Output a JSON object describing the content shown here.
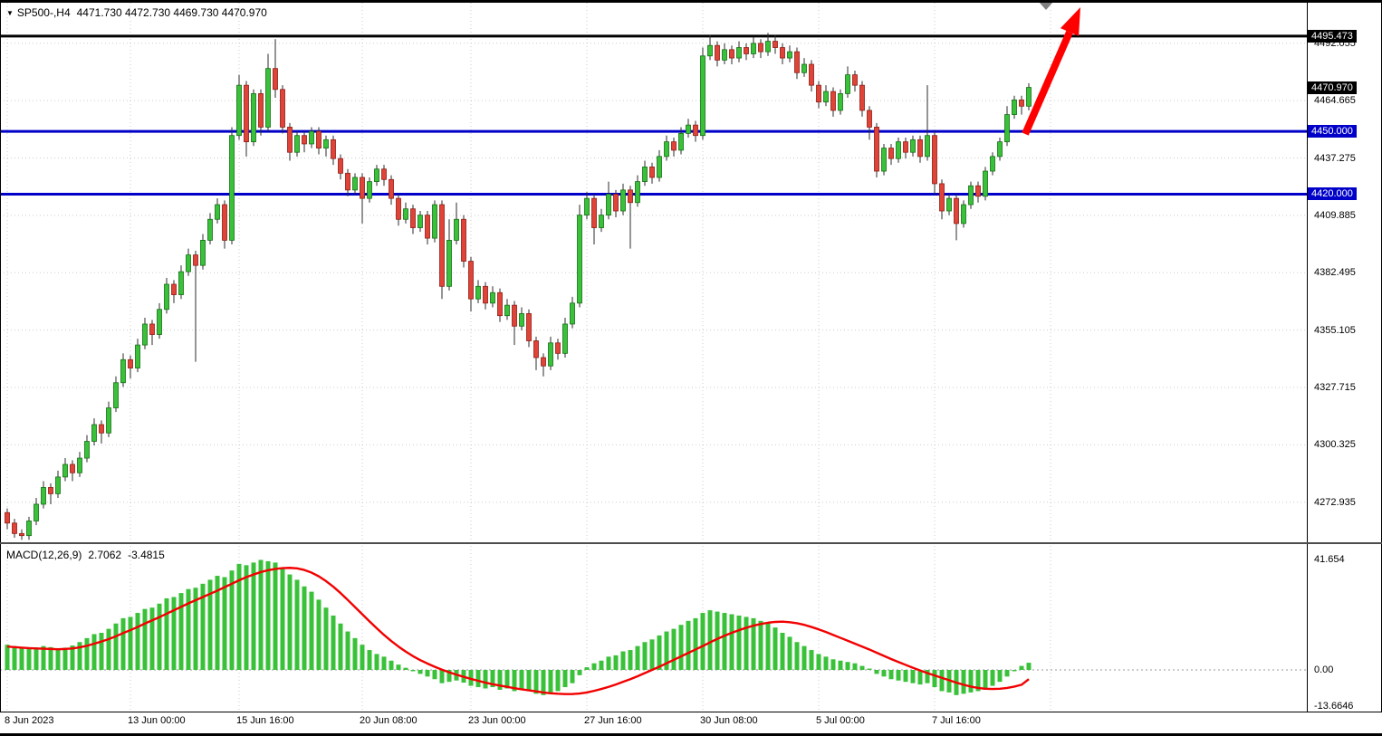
{
  "header": {
    "symbol_period": "SP500-,H4",
    "quote": "4471.730 4472.730 4469.730 4470.970"
  },
  "icons": {
    "title_triangle": "▼"
  },
  "indicator": {
    "name": "MACD(12,26,9)",
    "main_value": "2.7062",
    "signal_value": "-3.4815"
  },
  "price_axis": {
    "labels": [
      {
        "text": "4495.473",
        "price": 4495.473,
        "style": "box-black"
      },
      {
        "text": "4492.055",
        "price": 4492.055,
        "style": "plain"
      },
      {
        "text": "4470.970",
        "price": 4470.97,
        "style": "box-black"
      },
      {
        "text": "4464.665",
        "price": 4464.665,
        "style": "plain"
      },
      {
        "text": "4450.000",
        "price": 4450.0,
        "style": "box-blue"
      },
      {
        "text": "4437.275",
        "price": 4437.275,
        "style": "plain"
      },
      {
        "text": "4420.000",
        "price": 4420.0,
        "style": "box-blue"
      },
      {
        "text": "4409.885",
        "price": 4409.885,
        "style": "plain"
      },
      {
        "text": "4382.495",
        "price": 4382.495,
        "style": "plain"
      },
      {
        "text": "4355.105",
        "price": 4355.105,
        "style": "plain"
      },
      {
        "text": "4327.715",
        "price": 4327.715,
        "style": "plain"
      },
      {
        "text": "4300.325",
        "price": 4300.325,
        "style": "plain"
      },
      {
        "text": "4272.935",
        "price": 4272.935,
        "style": "plain"
      }
    ]
  },
  "chart_data": [
    {
      "type": "candlestick",
      "symbol": "SP500-",
      "timeframe": "H4",
      "last": {
        "open": 4471.73,
        "high": 4472.73,
        "low": 4469.73,
        "close": 4470.97
      },
      "ylim": [
        4253.4,
        4511.4
      ],
      "up_color": "#3ac13a",
      "down_color": "#e04338",
      "levels": [
        {
          "price": 4495.473,
          "color": "#000000",
          "width": 3
        },
        {
          "price": 4450.0,
          "color": "#0000C8",
          "width": 3
        },
        {
          "price": 4420.0,
          "color": "#0000C8",
          "width": 3
        }
      ],
      "grid_prices": [
        4492.055,
        4464.665,
        4437.275,
        4409.885,
        4382.495,
        4355.105,
        4327.715,
        4300.325,
        4272.935
      ],
      "time_ticks": [
        {
          "bar": 0,
          "label": "8 Jun 2023"
        },
        {
          "bar": 17,
          "label": "13 Jun 00:00"
        },
        {
          "bar": 32,
          "label": "15 Jun 16:00"
        },
        {
          "bar": 49,
          "label": "20 Jun 08:00"
        },
        {
          "bar": 64,
          "label": "23 Jun 00:00"
        },
        {
          "bar": 80,
          "label": "27 Jun 16:00"
        },
        {
          "bar": 96,
          "label": "30 Jun 08:00"
        },
        {
          "bar": 112,
          "label": "5 Jul 00:00"
        },
        {
          "bar": 128,
          "label": "7 Jul 16:00"
        },
        {
          "bar": 144,
          "label": ""
        }
      ],
      "annotations": {
        "arrow": {
          "tail": [
            1132,
            148
          ],
          "tip": [
            1193,
            8
          ],
          "color": "#FF0000"
        },
        "top_marker": {
          "x": 1155,
          "y": 2,
          "color": "#808080"
        }
      },
      "candles": [
        [
          4268,
          4270,
          4260,
          4263
        ],
        [
          4263,
          4265,
          4256,
          4258
        ],
        [
          4258,
          4260,
          4255,
          4257
        ],
        [
          4257,
          4266,
          4255,
          4264
        ],
        [
          4264,
          4275,
          4262,
          4272
        ],
        [
          4272,
          4283,
          4270,
          4280
        ],
        [
          4280,
          4282,
          4272,
          4277
        ],
        [
          4277,
          4288,
          4275,
          4285
        ],
        [
          4285,
          4294,
          4283,
          4291
        ],
        [
          4291,
          4293,
          4283,
          4287
        ],
        [
          4287,
          4297,
          4285,
          4294
        ],
        [
          4294,
          4305,
          4292,
          4302
        ],
        [
          4302,
          4313,
          4300,
          4310
        ],
        [
          4310,
          4312,
          4301,
          4306
        ],
        [
          4306,
          4321,
          4304,
          4318
        ],
        [
          4318,
          4333,
          4316,
          4330
        ],
        [
          4330,
          4344,
          4328,
          4341
        ],
        [
          4341,
          4343,
          4332,
          4337
        ],
        [
          4337,
          4351,
          4335,
          4348
        ],
        [
          4348,
          4361,
          4346,
          4358
        ],
        [
          4358,
          4360,
          4348,
          4353
        ],
        [
          4353,
          4368,
          4351,
          4365
        ],
        [
          4365,
          4380,
          4363,
          4377
        ],
        [
          4377,
          4379,
          4368,
          4372
        ],
        [
          4372,
          4386,
          4370,
          4383
        ],
        [
          4383,
          4394,
          4381,
          4391
        ],
        [
          4391,
          4393,
          4340,
          4386
        ],
        [
          4386,
          4401,
          4384,
          4398
        ],
        [
          4398,
          4411,
          4396,
          4408
        ],
        [
          4408,
          4418,
          4406,
          4415
        ],
        [
          4415,
          4417,
          4394,
          4398
        ],
        [
          4398,
          4452,
          4396,
          4448
        ],
        [
          4448,
          4477,
          4446,
          4472
        ],
        [
          4472,
          4474,
          4438,
          4445
        ],
        [
          4445,
          4470,
          4443,
          4468
        ],
        [
          4468,
          4470,
          4448,
          4452
        ],
        [
          4452,
          4487,
          4450,
          4480
        ],
        [
          4480,
          4494,
          4466,
          4470
        ],
        [
          4470,
          4472,
          4449,
          4452
        ],
        [
          4452,
          4454,
          4436,
          4440
        ],
        [
          4440,
          4450,
          4438,
          4448
        ],
        [
          4448,
          4450,
          4440,
          4444
        ],
        [
          4444,
          4452,
          4442,
          4450
        ],
        [
          4450,
          4452,
          4439,
          4442
        ],
        [
          4442,
          4448,
          4438,
          4446
        ],
        [
          4446,
          4448,
          4434,
          4437
        ],
        [
          4437,
          4439,
          4427,
          4430
        ],
        [
          4430,
          4432,
          4419,
          4422
        ],
        [
          4422,
          4430,
          4420,
          4428
        ],
        [
          4428,
          4430,
          4406,
          4418
        ],
        [
          4418,
          4428,
          4416,
          4426
        ],
        [
          4426,
          4434,
          4424,
          4432
        ],
        [
          4432,
          4434,
          4424,
          4427
        ],
        [
          4427,
          4429,
          4415,
          4418
        ],
        [
          4418,
          4420,
          4405,
          4408
        ],
        [
          4408,
          4416,
          4406,
          4413
        ],
        [
          4413,
          4415,
          4401,
          4404
        ],
        [
          4404,
          4412,
          4402,
          4410
        ],
        [
          4410,
          4412,
          4396,
          4399
        ],
        [
          4399,
          4417,
          4397,
          4415
        ],
        [
          4415,
          4417,
          4370,
          4376
        ],
        [
          4376,
          4408,
          4374,
          4398
        ],
        [
          4398,
          4416,
          4396,
          4408
        ],
        [
          4408,
          4410,
          4385,
          4388
        ],
        [
          4388,
          4390,
          4364,
          4370
        ],
        [
          4370,
          4379,
          4368,
          4376
        ],
        [
          4376,
          4378,
          4365,
          4368
        ],
        [
          4368,
          4376,
          4366,
          4373
        ],
        [
          4373,
          4375,
          4359,
          4362
        ],
        [
          4362,
          4370,
          4360,
          4367
        ],
        [
          4367,
          4369,
          4348,
          4357
        ],
        [
          4357,
          4366,
          4355,
          4363
        ],
        [
          4363,
          4365,
          4347,
          4350
        ],
        [
          4350,
          4352,
          4336,
          4342
        ],
        [
          4342,
          4344,
          4333,
          4338
        ],
        [
          4338,
          4352,
          4336,
          4349
        ],
        [
          4349,
          4351,
          4341,
          4344
        ],
        [
          4344,
          4361,
          4342,
          4358
        ],
        [
          4358,
          4371,
          4356,
          4368
        ],
        [
          4368,
          4415,
          4366,
          4410
        ],
        [
          4410,
          4421,
          4408,
          4418
        ],
        [
          4418,
          4420,
          4396,
          4404
        ],
        [
          4404,
          4413,
          4402,
          4410
        ],
        [
          4410,
          4426,
          4408,
          4420
        ],
        [
          4420,
          4422,
          4409,
          4412
        ],
        [
          4412,
          4425,
          4410,
          4422
        ],
        [
          4422,
          4424,
          4394,
          4416
        ],
        [
          4416,
          4429,
          4414,
          4426
        ],
        [
          4426,
          4436,
          4424,
          4433
        ],
        [
          4433,
          4435,
          4425,
          4428
        ],
        [
          4428,
          4441,
          4426,
          4438
        ],
        [
          4438,
          4448,
          4436,
          4445
        ],
        [
          4445,
          4447,
          4438,
          4441
        ],
        [
          4441,
          4452,
          4439,
          4449
        ],
        [
          4449,
          4456,
          4447,
          4453
        ],
        [
          4453,
          4455,
          4445,
          4448
        ],
        [
          4448,
          4490,
          4446,
          4486
        ],
        [
          4486,
          4496,
          4484,
          4491
        ],
        [
          4491,
          4493,
          4481,
          4484
        ],
        [
          4484,
          4492,
          4482,
          4489
        ],
        [
          4489,
          4491,
          4482,
          4485
        ],
        [
          4485,
          4493,
          4483,
          4490
        ],
        [
          4490,
          4492,
          4484,
          4487
        ],
        [
          4487,
          4495,
          4485,
          4492
        ],
        [
          4492,
          4494,
          4485,
          4488
        ],
        [
          4488,
          4497,
          4486,
          4493
        ],
        [
          4493,
          4496,
          4487,
          4490
        ],
        [
          4490,
          4492,
          4482,
          4485
        ],
        [
          4485,
          4491,
          4483,
          4488
        ],
        [
          4488,
          4490,
          4475,
          4478
        ],
        [
          4478,
          4485,
          4476,
          4482
        ],
        [
          4482,
          4484,
          4469,
          4472
        ],
        [
          4472,
          4474,
          4461,
          4464
        ],
        [
          4464,
          4472,
          4462,
          4469
        ],
        [
          4469,
          4471,
          4457,
          4460
        ],
        [
          4460,
          4470,
          4458,
          4468
        ],
        [
          4468,
          4481,
          4466,
          4477
        ],
        [
          4477,
          4479,
          4469,
          4472
        ],
        [
          4472,
          4474,
          4457,
          4460
        ],
        [
          4460,
          4462,
          4446,
          4452
        ],
        [
          4452,
          4454,
          4428,
          4431
        ],
        [
          4431,
          4444,
          4429,
          4442
        ],
        [
          4442,
          4444,
          4434,
          4437
        ],
        [
          4437,
          4447,
          4435,
          4445
        ],
        [
          4445,
          4447,
          4437,
          4440
        ],
        [
          4440,
          4448,
          4438,
          4446
        ],
        [
          4446,
          4448,
          4435,
          4438
        ],
        [
          4438,
          4472,
          4436,
          4448
        ],
        [
          4448,
          4450,
          4420,
          4425
        ],
        [
          4425,
          4427,
          4408,
          4412
        ],
        [
          4412,
          4420,
          4410,
          4418
        ],
        [
          4418,
          4420,
          4398,
          4406
        ],
        [
          4406,
          4417,
          4404,
          4415
        ],
        [
          4415,
          4426,
          4413,
          4424
        ],
        [
          4424,
          4426,
          4416,
          4419
        ],
        [
          4419,
          4433,
          4417,
          4431
        ],
        [
          4431,
          4440,
          4429,
          4438
        ],
        [
          4438,
          4447,
          4436,
          4445
        ],
        [
          4445,
          4462,
          4443,
          4458
        ],
        [
          4458,
          4467,
          4456,
          4465
        ],
        [
          4465,
          4467,
          4458,
          4462
        ],
        [
          4462,
          4473,
          4460,
          4470.97
        ]
      ]
    },
    {
      "type": "bar+line",
      "name": "MACD(12,26,9)",
      "values": {
        "main": 2.7062,
        "signal": -3.4815
      },
      "ylim": [
        -13.6646,
        41.654
      ],
      "histogram_color": "#3ac13a",
      "signal_color": "#f20000",
      "axis_labels": [
        {
          "text": "41.654",
          "value": 41.654
        },
        {
          "text": "0.00",
          "value": 0
        },
        {
          "text": "-13.6646",
          "value": -13.6646
        }
      ],
      "histogram": [
        9.5,
        9.0,
        8.5,
        8.2,
        8.5,
        9.0,
        8.6,
        8.0,
        8.4,
        9.2,
        10.5,
        12.0,
        13.5,
        14.0,
        15.5,
        17.5,
        19.5,
        20.0,
        21.5,
        23.0,
        23.5,
        25.0,
        27.0,
        27.5,
        29.0,
        30.5,
        31.0,
        32.5,
        34.0,
        35.5,
        35.0,
        37.5,
        40.0,
        39.5,
        40.5,
        41.5,
        41.0,
        40.5,
        38.5,
        36.0,
        34.0,
        31.5,
        29.5,
        26.5,
        23.5,
        20.5,
        17.5,
        14.5,
        12.0,
        9.5,
        7.5,
        6.0,
        5.0,
        3.5,
        2.0,
        0.8,
        -0.5,
        -1.5,
        -2.5,
        -3.5,
        -5.0,
        -4.5,
        -4.0,
        -4.8,
        -6.0,
        -6.5,
        -7.0,
        -6.5,
        -7.5,
        -7.0,
        -8.0,
        -7.0,
        -8.0,
        -9.0,
        -9.5,
        -8.5,
        -8.0,
        -6.5,
        -5.0,
        -2.0,
        1.0,
        2.5,
        3.5,
        5.0,
        5.5,
        7.0,
        7.5,
        9.0,
        10.5,
        11.5,
        13.0,
        14.5,
        15.5,
        17.0,
        18.5,
        19.5,
        21.5,
        22.5,
        22.0,
        21.5,
        21.0,
        20.5,
        20.0,
        19.5,
        18.5,
        17.5,
        16.0,
        14.0,
        12.5,
        10.5,
        9.0,
        7.5,
        6.0,
        5.0,
        4.0,
        3.5,
        3.0,
        2.5,
        1.5,
        0.5,
        -1.5,
        -2.5,
        -3.5,
        -4.0,
        -4.5,
        -5.0,
        -5.5,
        -5.0,
        -6.5,
        -8.0,
        -8.5,
        -9.5,
        -9.0,
        -8.5,
        -8.0,
        -7.5,
        -6.0,
        -4.5,
        -2.5,
        -0.5,
        1.5,
        2.7062
      ],
      "signal": [
        8.8,
        8.6,
        8.4,
        8.2,
        8.1,
        8.0,
        7.9,
        7.8,
        7.9,
        8.1,
        8.5,
        9.1,
        9.9,
        10.7,
        11.6,
        12.7,
        13.9,
        15.0,
        16.2,
        17.5,
        18.7,
        19.9,
        21.2,
        22.5,
        23.8,
        25.1,
        26.3,
        27.5,
        28.7,
        29.9,
        31.2,
        32.5,
        33.8,
        35.0,
        36.0,
        36.9,
        37.6,
        38.1,
        38.4,
        38.5,
        38.3,
        37.7,
        36.7,
        35.3,
        33.5,
        31.4,
        29.0,
        26.4,
        23.7,
        21.0,
        18.3,
        15.7,
        13.2,
        10.9,
        8.8,
        6.9,
        5.2,
        3.7,
        2.4,
        1.2,
        0.1,
        -0.9,
        -1.8,
        -2.6,
        -3.4,
        -4.1,
        -4.8,
        -5.4,
        -5.9,
        -6.4,
        -6.9,
        -7.3,
        -7.7,
        -8.1,
        -8.5,
        -8.8,
        -9.0,
        -9.1,
        -9.1,
        -8.9,
        -8.5,
        -7.9,
        -7.2,
        -6.4,
        -5.5,
        -4.5,
        -3.5,
        -2.4,
        -1.2,
        0.0,
        1.2,
        2.5,
        3.8,
        5.1,
        6.4,
        7.7,
        9.0,
        10.4,
        11.7,
        12.9,
        14.0,
        15.0,
        15.9,
        16.7,
        17.3,
        17.8,
        18.1,
        18.2,
        18.0,
        17.6,
        17.0,
        16.2,
        15.3,
        14.3,
        13.2,
        12.1,
        11.0,
        9.9,
        8.8,
        7.7,
        6.5,
        5.3,
        4.1,
        3.0,
        1.9,
        0.8,
        -0.2,
        -1.2,
        -2.1,
        -3.0,
        -3.9,
        -4.8,
        -5.6,
        -6.3,
        -6.8,
        -7.1,
        -7.2,
        -7.1,
        -6.8,
        -6.3,
        -5.6,
        -3.4815
      ]
    }
  ]
}
